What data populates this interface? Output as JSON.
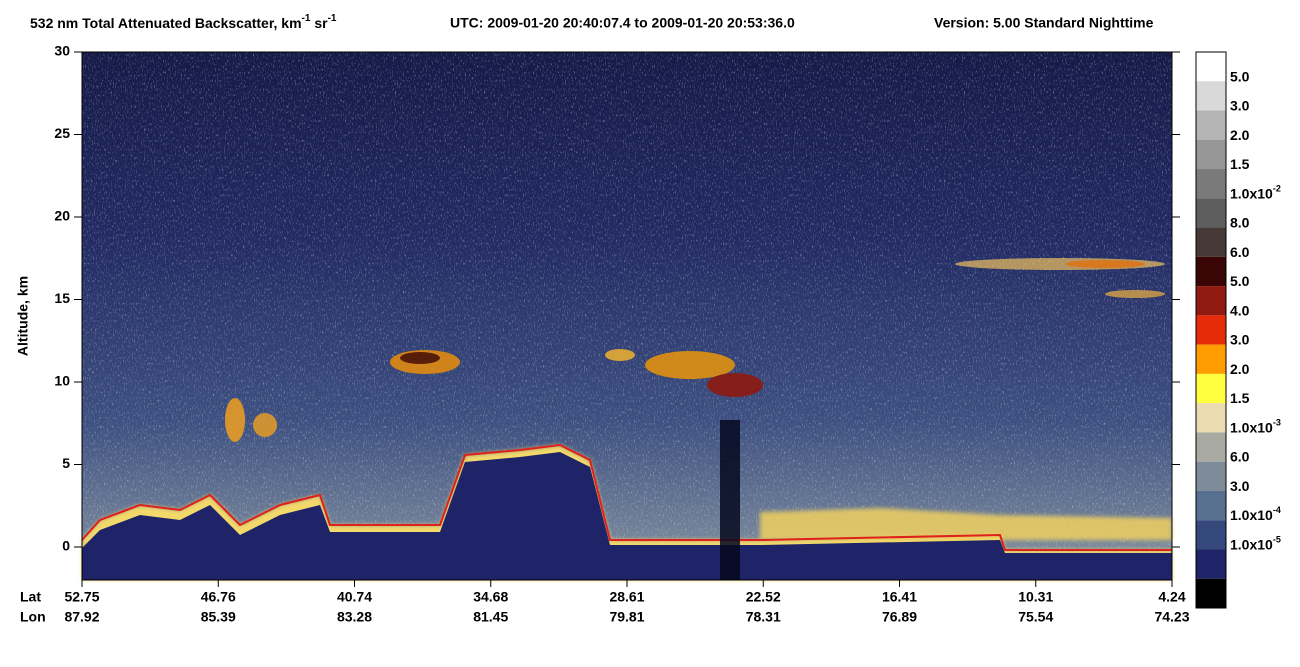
{
  "chart_data": {
    "type": "curtain",
    "title": [
      "532 nm Total Attenuated Backscatter, km",
      "-1",
      " sr",
      "-1"
    ],
    "subtitle": "UTC:  2009-01-20 20:40:07.4  to  2009-01-20 20:53:36.0",
    "version": "Version: 5.00  Standard  Nighttime",
    "ylabel": "Altitude, km",
    "ylim": [
      -2,
      30
    ],
    "yticks": [
      0,
      5,
      10,
      15,
      20,
      25,
      30
    ],
    "xlabel": "Lat",
    "x2label": "Lon",
    "lat": [
      52.75,
      46.76,
      40.74,
      34.68,
      28.61,
      22.52,
      16.41,
      10.31,
      4.24
    ],
    "lon": [
      87.92,
      85.39,
      83.28,
      81.45,
      79.81,
      78.31,
      76.89,
      75.54,
      74.23
    ],
    "colorbar_labels": [
      {
        "label": "5.0"
      },
      {
        "label": "3.0"
      },
      {
        "label": "2.0"
      },
      {
        "label": "1.5"
      },
      {
        "label": "1.0x10",
        "exp": "-2"
      },
      {
        "label": "8.0"
      },
      {
        "label": "6.0"
      },
      {
        "label": "5.0"
      },
      {
        "label": "4.0"
      },
      {
        "label": "3.0"
      },
      {
        "label": "2.0"
      },
      {
        "label": "1.5"
      },
      {
        "label": "1.0x10",
        "exp": "-3"
      },
      {
        "label": "6.0"
      },
      {
        "label": "3.0"
      },
      {
        "label": "1.0x10",
        "exp": "-4"
      },
      {
        "label": "1.0x10",
        "exp": "-5"
      }
    ],
    "colorbar_colors": [
      "#ffffff",
      "#d9d9d9",
      "#b4b4b4",
      "#979797",
      "#7a7a7a",
      "#5e5e5e",
      "#463a36",
      "#3a0505",
      "#8e1a10",
      "#e62b0b",
      "#ff9c00",
      "#ffff40",
      "#eadbb0",
      "#a9aaa2",
      "#7e8b99",
      "#58708f",
      "#34487c",
      "#1f2468",
      "#000000"
    ]
  }
}
